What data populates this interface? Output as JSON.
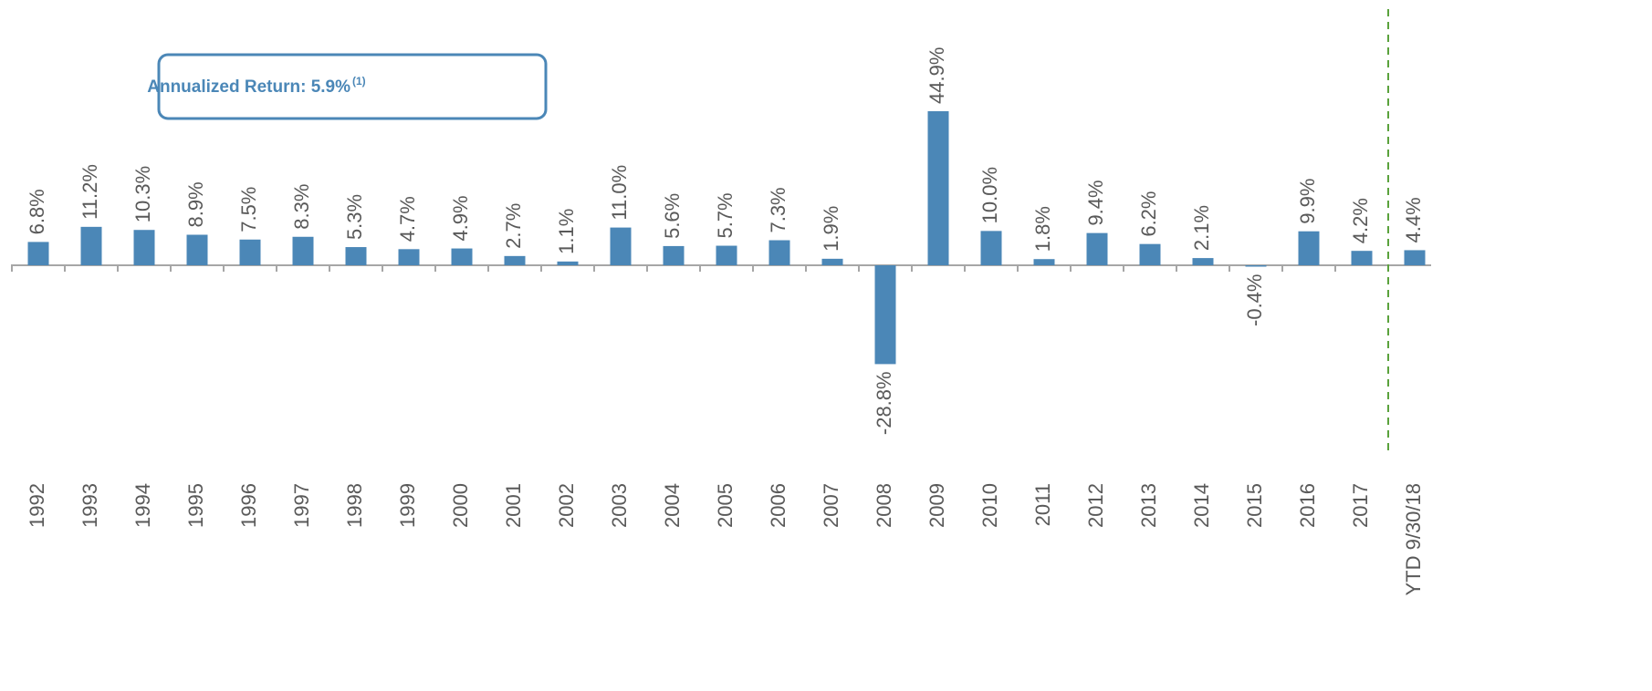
{
  "chart_data": {
    "type": "bar",
    "annotation": "Annualized Return: 5.9%",
    "annotation_note": "(1)",
    "categories": [
      "1992",
      "1993",
      "1994",
      "1995",
      "1996",
      "1997",
      "1998",
      "1999",
      "2000",
      "2001",
      "2002",
      "2003",
      "2004",
      "2005",
      "2006",
      "2007",
      "2008",
      "2009",
      "2010",
      "2011",
      "2012",
      "2013",
      "2014",
      "2015",
      "2016",
      "2017",
      "YTD 9/30/18"
    ],
    "values": [
      6.8,
      11.2,
      10.3,
      8.9,
      7.5,
      8.3,
      5.3,
      4.7,
      4.9,
      2.7,
      1.1,
      11.0,
      5.6,
      5.7,
      7.3,
      1.9,
      -28.8,
      44.9,
      10.0,
      1.8,
      9.4,
      6.2,
      2.1,
      -0.4,
      9.9,
      4.2,
      4.4
    ],
    "value_labels": [
      "6.8%",
      "11.2%",
      "10.3%",
      "8.9%",
      "7.5%",
      "8.3%",
      "5.3%",
      "4.7%",
      "4.9%",
      "2.7%",
      "1.1%",
      "11.0%",
      "5.6%",
      "5.7%",
      "7.3%",
      "1.9%",
      "-28.8%",
      "44.9%",
      "10.0%",
      "1.8%",
      "9.4%",
      "6.2%",
      "2.1%",
      "-0.4%",
      "9.9%",
      "4.2%",
      "4.4%"
    ],
    "color": "#4b87b7",
    "divider_color": "#5aa23c"
  }
}
